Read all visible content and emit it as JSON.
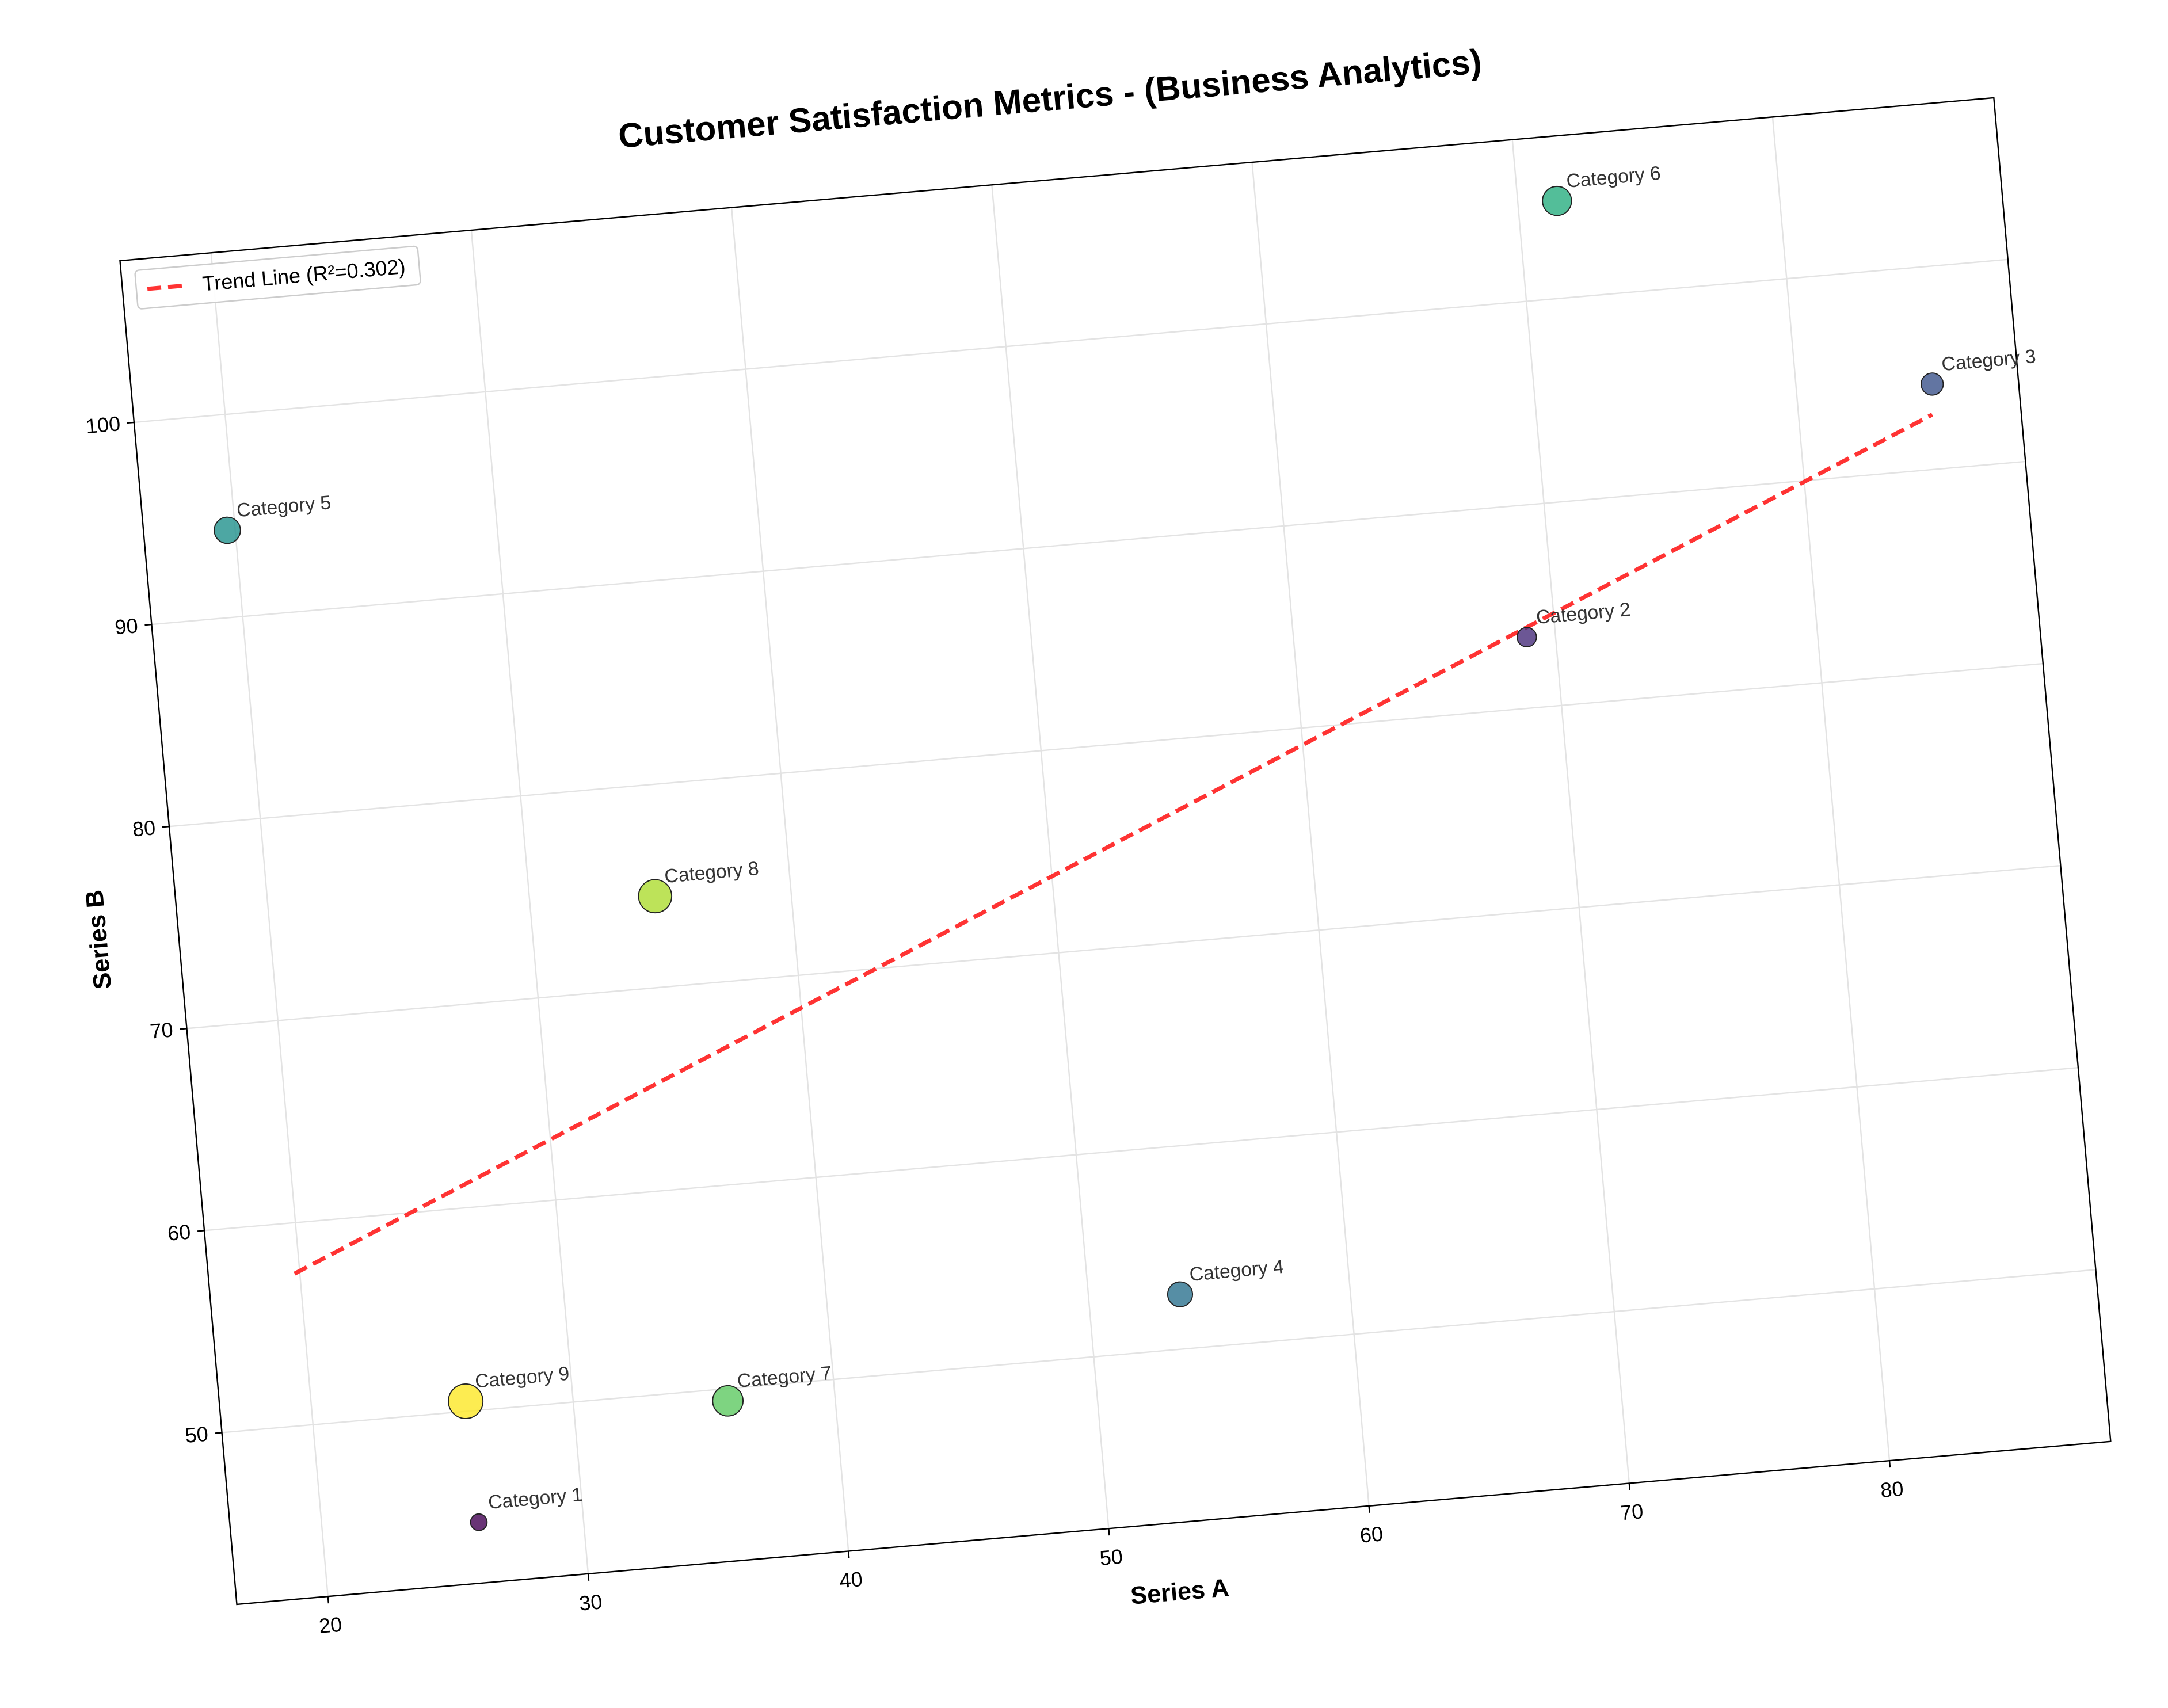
{
  "chart_data": {
    "type": "scatter",
    "title": "Customer Satisfaction Metrics - (Business Analytics)",
    "x_label": "Series A",
    "y_label": "Series B",
    "xlim": [
      16.5,
      88.5
    ],
    "ylim": [
      41.5,
      108
    ],
    "xticks": [
      20,
      30,
      40,
      50,
      60,
      70,
      80
    ],
    "yticks": [
      50,
      60,
      70,
      80,
      90,
      100
    ],
    "grid": true,
    "legend": "upper left",
    "categories": [
      "Category 1",
      "Category 2",
      "Category 3",
      "Category 4",
      "Category 5",
      "Category 6",
      "Category 7",
      "Category 8",
      "Category 9"
    ],
    "series": [
      {
        "x": [
          26.0,
          68.9,
          85.2,
          53.5,
          19.7,
          71.5,
          35.9,
          34.8,
          25.9
        ],
        "y": [
          44.5,
          83.5,
          94.2,
          52.7,
          94.3,
          104.8,
          49.4,
          74.5,
          50.5
        ],
        "sizes": [
          6,
          7,
          8,
          9,
          9.5,
          10.5,
          11,
          12,
          12.5
        ],
        "colors": [
          "#440154",
          "#472d7b",
          "#3b528b",
          "#2c728e",
          "#21918c",
          "#28ae80",
          "#5ec962",
          "#addc30",
          "#fde725"
        ]
      }
    ],
    "trend": {
      "name": "Trend Line (R²=0.302)",
      "color": "#ff3333",
      "x": [
        19.8,
        85.1
      ],
      "y": [
        57.5,
        92.7
      ]
    }
  }
}
